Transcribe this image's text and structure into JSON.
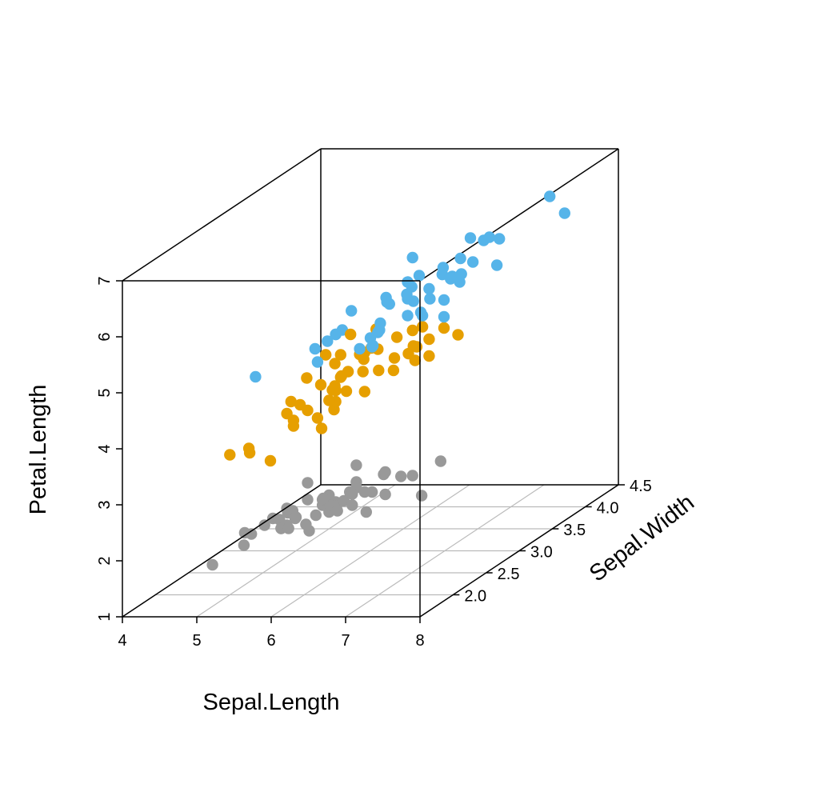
{
  "chart_data": {
    "type": "scatter3d",
    "title": "",
    "xlabel": "Sepal.Length",
    "ylabel": "Sepal.Width",
    "zlabel": "Petal.Length",
    "xlim": [
      4,
      8
    ],
    "ylim": [
      1.5,
      4.5
    ],
    "zlim": [
      1,
      7
    ],
    "xticks": [
      "4",
      "5",
      "6",
      "7",
      "8"
    ],
    "yticks": [
      "2.0",
      "2.5",
      "3.0",
      "3.5",
      "4.0",
      "4.5"
    ],
    "zticks": [
      "1",
      "2",
      "3",
      "4",
      "5",
      "6",
      "7"
    ],
    "grid": "floor",
    "legend": "none",
    "series": [
      {
        "color": "#999999",
        "points": [
          [
            4.3,
            3.0,
            1.1
          ],
          [
            4.4,
            2.9,
            1.4
          ],
          [
            4.4,
            3.0,
            1.3
          ],
          [
            4.4,
            3.2,
            1.3
          ],
          [
            4.5,
            2.3,
            1.3
          ],
          [
            4.6,
            3.1,
            1.5
          ],
          [
            4.6,
            3.4,
            1.4
          ],
          [
            4.6,
            3.6,
            1.0
          ],
          [
            4.6,
            3.2,
            1.4
          ],
          [
            4.7,
            3.2,
            1.3
          ],
          [
            4.7,
            3.2,
            1.6
          ],
          [
            4.8,
            3.4,
            1.6
          ],
          [
            4.8,
            3.0,
            1.4
          ],
          [
            4.8,
            3.4,
            1.9
          ],
          [
            4.8,
            3.1,
            1.6
          ],
          [
            4.8,
            3.0,
            1.4
          ],
          [
            4.9,
            3.0,
            1.4
          ],
          [
            4.9,
            3.1,
            1.5
          ],
          [
            4.9,
            3.6,
            1.4
          ],
          [
            5.0,
            3.6,
            1.4
          ],
          [
            5.0,
            3.4,
            1.5
          ],
          [
            5.0,
            3.0,
            1.6
          ],
          [
            5.0,
            3.4,
            1.6
          ],
          [
            5.0,
            3.2,
            1.2
          ],
          [
            5.0,
            3.5,
            1.3
          ],
          [
            5.0,
            3.5,
            1.6
          ],
          [
            5.0,
            3.3,
            1.4
          ],
          [
            5.1,
            3.5,
            1.4
          ],
          [
            5.1,
            3.7,
            1.5
          ],
          [
            5.1,
            3.3,
            1.7
          ],
          [
            5.1,
            3.4,
            1.5
          ],
          [
            5.1,
            3.8,
            1.9
          ],
          [
            5.1,
            3.8,
            1.6
          ],
          [
            5.1,
            3.8,
            1.5
          ],
          [
            5.2,
            3.5,
            1.5
          ],
          [
            5.2,
            3.4,
            1.4
          ],
          [
            5.2,
            4.1,
            1.5
          ],
          [
            5.3,
            3.7,
            1.5
          ],
          [
            5.4,
            3.9,
            1.7
          ],
          [
            5.4,
            3.7,
            1.5
          ],
          [
            5.4,
            3.9,
            1.3
          ],
          [
            5.4,
            3.4,
            1.7
          ],
          [
            5.4,
            3.4,
            1.5
          ],
          [
            5.5,
            4.2,
            1.4
          ],
          [
            5.5,
            3.5,
            1.3
          ],
          [
            5.7,
            4.4,
            1.5
          ],
          [
            5.7,
            3.8,
            1.7
          ],
          [
            5.8,
            4.0,
            1.2
          ]
        ]
      },
      {
        "color": "#E69F00",
        "points": [
          [
            4.9,
            2.4,
            3.3
          ],
          [
            5.0,
            2.0,
            3.5
          ],
          [
            5.0,
            2.3,
            3.3
          ],
          [
            5.1,
            2.5,
            3.0
          ],
          [
            5.2,
            2.7,
            3.9
          ],
          [
            5.4,
            3.0,
            4.5
          ],
          [
            5.5,
            2.3,
            4.0
          ],
          [
            5.5,
            2.4,
            3.8
          ],
          [
            5.5,
            2.4,
            3.7
          ],
          [
            5.5,
            2.5,
            4.0
          ],
          [
            5.5,
            2.6,
            4.4
          ],
          [
            5.6,
            2.9,
            3.6
          ],
          [
            5.6,
            3.0,
            4.5
          ],
          [
            5.6,
            2.5,
            3.9
          ],
          [
            5.6,
            3.0,
            4.1
          ],
          [
            5.6,
            2.7,
            4.2
          ],
          [
            5.7,
            2.8,
            4.5
          ],
          [
            5.7,
            2.6,
            3.5
          ],
          [
            5.7,
            3.0,
            4.2
          ],
          [
            5.7,
            2.9,
            4.2
          ],
          [
            5.7,
            2.8,
            4.1
          ],
          [
            5.8,
            2.7,
            4.1
          ],
          [
            5.8,
            2.7,
            3.9
          ],
          [
            5.8,
            2.6,
            4.0
          ],
          [
            5.9,
            3.0,
            4.2
          ],
          [
            5.9,
            3.2,
            4.8
          ],
          [
            6.0,
            2.2,
            4.0
          ],
          [
            6.0,
            2.9,
            4.5
          ],
          [
            6.0,
            2.7,
            5.1
          ],
          [
            6.0,
            3.4,
            4.5
          ],
          [
            6.1,
            2.9,
            4.7
          ],
          [
            6.1,
            2.8,
            4.0
          ],
          [
            6.1,
            2.8,
            4.7
          ],
          [
            6.1,
            3.0,
            4.6
          ],
          [
            6.2,
            2.2,
            4.5
          ],
          [
            6.2,
            2.9,
            4.3
          ],
          [
            6.3,
            3.3,
            4.7
          ],
          [
            6.3,
            2.5,
            4.9
          ],
          [
            6.3,
            2.3,
            4.4
          ],
          [
            6.4,
            3.2,
            4.5
          ],
          [
            6.4,
            2.9,
            4.3
          ],
          [
            6.5,
            2.8,
            4.6
          ],
          [
            6.6,
            2.9,
            4.6
          ],
          [
            6.6,
            3.0,
            4.4
          ],
          [
            6.7,
            3.1,
            4.4
          ],
          [
            6.7,
            3.0,
            5.0
          ],
          [
            6.7,
            3.1,
            4.7
          ],
          [
            6.8,
            2.8,
            4.8
          ],
          [
            6.9,
            3.1,
            4.9
          ],
          [
            7.0,
            3.2,
            4.7
          ]
        ]
      },
      {
        "color": "#56B4E9",
        "points": [
          [
            4.9,
            2.5,
            4.5
          ],
          [
            5.6,
            2.8,
            4.9
          ],
          [
            5.7,
            2.5,
            5.0
          ],
          [
            5.8,
            2.7,
            5.1
          ],
          [
            5.8,
            2.8,
            5.1
          ],
          [
            5.8,
            2.7,
            5.1
          ],
          [
            6.0,
            2.2,
            5.0
          ],
          [
            6.0,
            3.0,
            4.8
          ],
          [
            6.1,
            3.0,
            4.9
          ],
          [
            6.1,
            2.6,
            5.6
          ],
          [
            6.2,
            2.8,
            4.8
          ],
          [
            6.2,
            3.4,
            5.4
          ],
          [
            6.3,
            3.3,
            6.0
          ],
          [
            6.3,
            2.9,
            5.6
          ],
          [
            6.3,
            2.5,
            5.0
          ],
          [
            6.3,
            2.7,
            4.9
          ],
          [
            6.3,
            2.8,
            5.1
          ],
          [
            6.3,
            3.4,
            5.6
          ],
          [
            6.4,
            2.7,
            5.3
          ],
          [
            6.4,
            3.2,
            5.3
          ],
          [
            6.4,
            2.8,
            5.6
          ],
          [
            6.4,
            2.8,
            5.6
          ],
          [
            6.4,
            3.1,
            5.5
          ],
          [
            6.5,
            3.0,
            5.8
          ],
          [
            6.5,
            3.2,
            5.1
          ],
          [
            6.5,
            3.0,
            5.5
          ],
          [
            6.5,
            3.0,
            5.2
          ],
          [
            6.7,
            2.5,
            5.8
          ],
          [
            6.7,
            3.3,
            5.7
          ],
          [
            6.7,
            3.1,
            5.6
          ],
          [
            6.7,
            3.3,
            5.7
          ],
          [
            6.7,
            3.0,
            5.2
          ],
          [
            6.8,
            3.0,
            5.5
          ],
          [
            6.8,
            3.2,
            5.9
          ],
          [
            6.9,
            3.2,
            5.7
          ],
          [
            6.9,
            3.1,
            5.4
          ],
          [
            6.9,
            3.1,
            5.1
          ],
          [
            7.1,
            3.0,
            5.9
          ],
          [
            7.2,
            3.6,
            6.1
          ],
          [
            7.2,
            3.2,
            6.0
          ],
          [
            7.2,
            3.0,
            5.8
          ],
          [
            7.3,
            2.9,
            6.3
          ],
          [
            7.4,
            2.8,
            6.1
          ],
          [
            7.6,
            3.0,
            6.6
          ],
          [
            7.7,
            3.8,
            6.7
          ],
          [
            7.7,
            2.6,
            6.9
          ],
          [
            7.7,
            2.8,
            6.7
          ],
          [
            7.7,
            3.0,
            6.1
          ],
          [
            7.9,
            3.8,
            6.4
          ]
        ]
      }
    ]
  }
}
